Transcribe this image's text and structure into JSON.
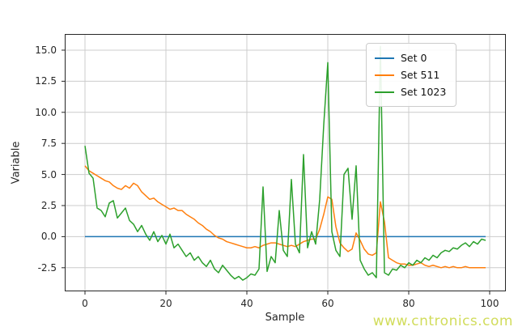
{
  "watermark": {
    "text": "www.cntronics.com",
    "color": "#cdd94a"
  },
  "chart_data": {
    "type": "line",
    "title": "",
    "xlabel": "Sample",
    "ylabel": "Variable",
    "xlim": [
      -5,
      104
    ],
    "ylim": [
      -4.4,
      16.3
    ],
    "grid": true,
    "grid_color": "#cccccc",
    "spine_color": "#262626",
    "legend_position": "upper right",
    "xticks": [
      0,
      20,
      40,
      60,
      80,
      100
    ],
    "xtick_labels": [
      "0",
      "20",
      "40",
      "60",
      "80",
      "100"
    ],
    "yticks": [
      -2.5,
      0.0,
      2.5,
      5.0,
      7.5,
      10.0,
      12.5,
      15.0
    ],
    "ytick_labels": [
      "-2.5",
      "0.0",
      "2.5",
      "5.0",
      "7.5",
      "10.0",
      "12.5",
      "15.0"
    ],
    "x": [
      0,
      1,
      2,
      3,
      4,
      5,
      6,
      7,
      8,
      9,
      10,
      11,
      12,
      13,
      14,
      15,
      16,
      17,
      18,
      19,
      20,
      21,
      22,
      23,
      24,
      25,
      26,
      27,
      28,
      29,
      30,
      31,
      32,
      33,
      34,
      35,
      36,
      37,
      38,
      39,
      40,
      41,
      42,
      43,
      44,
      45,
      46,
      47,
      48,
      49,
      50,
      51,
      52,
      53,
      54,
      55,
      56,
      57,
      58,
      59,
      60,
      61,
      62,
      63,
      64,
      65,
      66,
      67,
      68,
      69,
      70,
      71,
      72,
      73,
      74,
      75,
      76,
      77,
      78,
      79,
      80,
      81,
      82,
      83,
      84,
      85,
      86,
      87,
      88,
      89,
      90,
      91,
      92,
      93,
      94,
      95,
      96,
      97,
      98,
      99
    ],
    "series": [
      {
        "name": "Set 0",
        "color": "#1f77b4",
        "values": [
          0,
          0,
          0,
          0,
          0,
          0,
          0,
          0,
          0,
          0,
          0,
          0,
          0,
          0,
          0,
          0,
          0,
          0,
          0,
          0,
          0,
          0,
          0,
          0,
          0,
          0,
          0,
          0,
          0,
          0,
          0,
          0,
          0,
          0,
          0,
          0,
          0,
          0,
          0,
          0,
          0,
          0,
          0,
          0,
          0,
          0,
          0,
          0,
          0,
          0,
          0,
          0,
          0,
          0,
          0,
          0,
          0,
          0,
          0,
          0,
          0,
          0,
          0,
          0,
          0,
          0,
          0,
          0,
          0,
          0,
          0,
          0,
          0,
          0,
          0,
          0,
          0,
          0,
          0,
          0,
          0,
          0,
          0,
          0,
          0,
          0,
          0,
          0,
          0,
          0,
          0,
          0,
          0,
          0,
          0,
          0,
          0,
          0,
          0,
          0
        ]
      },
      {
        "name": "Set 511",
        "color": "#ff7f0e",
        "values": [
          5.7,
          5.3,
          5.1,
          4.9,
          4.7,
          4.5,
          4.4,
          4.1,
          3.9,
          3.8,
          4.1,
          3.9,
          4.3,
          4.1,
          3.6,
          3.3,
          3.0,
          3.1,
          2.8,
          2.6,
          2.4,
          2.2,
          2.3,
          2.1,
          2.1,
          1.8,
          1.6,
          1.4,
          1.1,
          0.9,
          0.6,
          0.4,
          0.1,
          -0.1,
          -0.2,
          -0.4,
          -0.5,
          -0.6,
          -0.7,
          -0.8,
          -0.9,
          -0.9,
          -0.8,
          -0.9,
          -0.7,
          -0.6,
          -0.5,
          -0.5,
          -0.6,
          -0.7,
          -0.8,
          -0.7,
          -0.8,
          -0.6,
          -0.4,
          -0.3,
          -0.2,
          -0.2,
          0.6,
          1.8,
          3.2,
          3.0,
          0.8,
          -0.5,
          -0.9,
          -1.2,
          -1.0,
          0.3,
          -0.3,
          -1.0,
          -1.4,
          -1.5,
          -1.3,
          2.8,
          1.2,
          -1.7,
          -1.9,
          -2.1,
          -2.2,
          -2.2,
          -2.3,
          -2.3,
          -2.2,
          -2.1,
          -2.3,
          -2.4,
          -2.3,
          -2.4,
          -2.5,
          -2.4,
          -2.5,
          -2.4,
          -2.5,
          -2.5,
          -2.4,
          -2.5,
          -2.5,
          -2.5,
          -2.5,
          -2.5
        ]
      },
      {
        "name": "Set 1023",
        "color": "#2ca02c",
        "values": [
          7.3,
          5.1,
          4.7,
          2.3,
          2.1,
          1.6,
          2.7,
          2.9,
          1.5,
          1.9,
          2.3,
          1.3,
          1.0,
          0.4,
          0.9,
          0.2,
          -0.3,
          0.4,
          -0.4,
          0.1,
          -0.6,
          0.2,
          -0.9,
          -0.6,
          -1.1,
          -1.6,
          -1.3,
          -1.9,
          -1.6,
          -2.1,
          -2.4,
          -1.9,
          -2.6,
          -2.9,
          -2.3,
          -2.7,
          -3.1,
          -3.4,
          -3.2,
          -3.5,
          -3.3,
          -3.0,
          -3.1,
          -2.6,
          4.0,
          -2.8,
          -1.6,
          -2.1,
          2.1,
          -1.1,
          -1.6,
          4.6,
          -0.6,
          -1.3,
          6.6,
          -0.9,
          0.4,
          -0.6,
          3.0,
          9.0,
          14.0,
          0.4,
          -1.1,
          -1.6,
          5.0,
          5.5,
          1.4,
          5.7,
          -1.9,
          -2.6,
          -3.1,
          -2.9,
          -3.3,
          15.3,
          -2.9,
          -3.1,
          -2.6,
          -2.7,
          -2.3,
          -2.5,
          -2.1,
          -2.3,
          -1.9,
          -2.1,
          -1.7,
          -1.9,
          -1.5,
          -1.7,
          -1.3,
          -1.1,
          -1.2,
          -0.9,
          -1.0,
          -0.7,
          -0.5,
          -0.8,
          -0.4,
          -0.6,
          -0.2,
          -0.3
        ]
      }
    ]
  }
}
